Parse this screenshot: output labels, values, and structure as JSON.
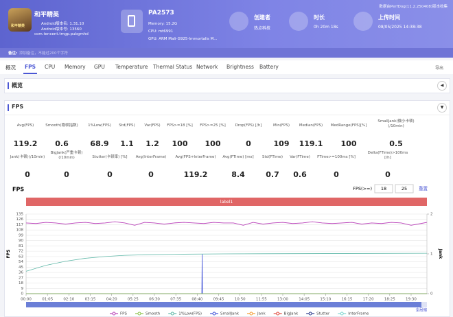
{
  "header": {
    "notice": "数据由PerfDog(11.2.250408)版本收集",
    "app": {
      "name": "和平精英",
      "version_name": "Android版本名: 1.31.10",
      "version_code": "Android版本号: 13560",
      "package": "com.tencent.tmgp.pubgmhd",
      "icon_text": "和平精英"
    },
    "device": {
      "name": "PA2573",
      "memory": "Memory: 15.2G",
      "cpu": "CPU: mt6991",
      "gpu": "GPU: ARM Mali-G925-Immortalis M..."
    },
    "info": [
      {
        "label": "创建者",
        "value": "热点科技"
      },
      {
        "label": "时长",
        "value": "0h 20m 18s"
      },
      {
        "label": "上传时间",
        "value": "08/05/2025 14:38:38"
      }
    ]
  },
  "remark": {
    "label": "备注:",
    "placeholder": "添加备注，不能过200个字符"
  },
  "tabs": [
    "概况",
    "FPS",
    "CPU",
    "Memory",
    "GPU",
    "Temperature",
    "Thermal Status",
    "Network",
    "Brightness",
    "Battery"
  ],
  "active_tab": 1,
  "export": "导出",
  "sections": {
    "overview": "概览",
    "fps": "FPS"
  },
  "stats": [
    [
      {
        "label": "Avg(FPS)",
        "value": 119.2
      },
      {
        "label": "Smooth(稳帧指数)",
        "value": 0.6
      },
      {
        "label": "1%Low(FPS)",
        "value": 68.9
      },
      {
        "label": "Std(FPS)",
        "value": 1.1
      },
      {
        "label": "Var(FPS)",
        "value": 1.2
      },
      {
        "label": "FPS>=18 [%]",
        "value": 100
      },
      {
        "label": "FPS>=25 [%]",
        "value": 100
      },
      {
        "label": "Drop(FPS) [/h]",
        "value": 0
      },
      {
        "label": "Min(FPS)",
        "value": 109
      },
      {
        "label": "Median(FPS)",
        "value": 119.1
      },
      {
        "label": "MedRange(FPS)[%]",
        "value": 100
      },
      {
        "label": "SmallJank(微小卡顿)(/10min)",
        "value": 0.5
      }
    ],
    [
      {
        "label": "Jank(卡顿)(/10min)",
        "value": 0
      },
      {
        "label": "BigJank(严重卡顿)(/10min)",
        "value": 0
      },
      {
        "label": "Stutter(卡顿率) [%]",
        "value": 0
      },
      {
        "label": "Avg(InterFrame)",
        "value": 0
      },
      {
        "label": "Avg(FPS+InterFrame)",
        "value": 119.2
      },
      {
        "label": "Avg(FTime) [ms]",
        "value": 8.4
      },
      {
        "label": "Std(FTime)",
        "value": 0.7
      },
      {
        "label": "Var(FTime)",
        "value": 0.6
      },
      {
        "label": "FTime>=100ms [%]",
        "value": 0
      },
      {
        "label": "Delta(FTime)>100ms [/h]",
        "value": 0
      }
    ]
  ],
  "chart_data": {
    "type": "line",
    "title": "FPS",
    "threshold_label": "FPS(>=)",
    "thresholds": [
      18,
      25
    ],
    "reset": "重置",
    "band_label": "label1",
    "ylabel": "FPS",
    "y2label": "Jank",
    "zoom_label": "全局缩",
    "grid": true,
    "xlim": [
      0,
      1218
    ],
    "ylim": [
      0,
      135
    ],
    "yticks": [
      0,
      9,
      18,
      27,
      36,
      45,
      54,
      63,
      72,
      81,
      90,
      99,
      108,
      117,
      126,
      135
    ],
    "y2lim": [
      0,
      2
    ],
    "y2ticks": [
      0,
      1,
      2
    ],
    "xticks": [
      {
        "value": 0,
        "label": "00:00"
      },
      {
        "value": 65,
        "label": "01:05"
      },
      {
        "value": 130,
        "label": "02:10"
      },
      {
        "value": 195,
        "label": "03:15"
      },
      {
        "value": 260,
        "label": "04:20"
      },
      {
        "value": 325,
        "label": "05:25"
      },
      {
        "value": 390,
        "label": "06:30"
      },
      {
        "value": 455,
        "label": "07:35"
      },
      {
        "value": 520,
        "label": "08:40"
      },
      {
        "value": 585,
        "label": "09:45"
      },
      {
        "value": 650,
        "label": "10:50"
      },
      {
        "value": 715,
        "label": "11:55"
      },
      {
        "value": 780,
        "label": "13:00"
      },
      {
        "value": 845,
        "label": "14:05"
      },
      {
        "value": 910,
        "label": "15:10"
      },
      {
        "value": 975,
        "label": "16:15"
      },
      {
        "value": 1040,
        "label": "17:20"
      },
      {
        "value": 1105,
        "label": "18:25"
      },
      {
        "value": 1170,
        "label": "19:30"
      }
    ],
    "series": [
      {
        "name": "FPS",
        "color": "#b83fb8",
        "x": [
          0,
          30,
          60,
          90,
          120,
          150,
          180,
          210,
          240,
          270,
          300,
          330,
          360,
          390,
          420,
          450,
          480,
          510,
          540,
          570,
          600,
          630,
          660,
          690,
          720,
          750,
          780,
          810,
          840,
          870,
          900,
          930,
          960,
          990,
          1020,
          1050,
          1080,
          1110,
          1140,
          1170,
          1200,
          1218
        ],
        "values": [
          120,
          119,
          121,
          120,
          118,
          120,
          121,
          119,
          120,
          122,
          120,
          116,
          121,
          120,
          118,
          120,
          121,
          120,
          119,
          121,
          120,
          120,
          116,
          121,
          118,
          120,
          121,
          119,
          120,
          122,
          120,
          119,
          120,
          121,
          118,
          120,
          119,
          121,
          120,
          116,
          119,
          121
        ]
      },
      {
        "name": "Smooth",
        "color": "#8bc34a",
        "axis": "y2",
        "x": [
          0,
          1218
        ],
        "values": [
          0,
          0
        ]
      },
      {
        "name": "1%Low(FPS)",
        "color": "#5fb8a8",
        "x": [
          0,
          60,
          120,
          180,
          240,
          300,
          360,
          480,
          600,
          900,
          1218
        ],
        "values": [
          38,
          48,
          55,
          60,
          63,
          65,
          66,
          67,
          67.5,
          68,
          68.5
        ]
      },
      {
        "name": "SmallJank",
        "color": "#3f51d8",
        "axis": "y2",
        "x": [
          0,
          534,
          535,
          536,
          1218
        ],
        "values": [
          0,
          0,
          1,
          0,
          0
        ]
      },
      {
        "name": "Jank",
        "color": "#f39c33",
        "axis": "y2",
        "x": [
          0,
          1218
        ],
        "values": [
          0,
          0
        ]
      },
      {
        "name": "BigJank",
        "color": "#e0483c",
        "axis": "y2",
        "x": [
          0,
          1218
        ],
        "values": [
          0,
          0
        ]
      },
      {
        "name": "Stutter",
        "color": "#2a3a8c",
        "axis": "y2",
        "x": [
          0,
          1218
        ],
        "values": [
          0,
          0
        ]
      },
      {
        "name": "InterFrame",
        "color": "#7fd6d0",
        "x": [
          0,
          1218
        ],
        "values": [
          0,
          0
        ]
      }
    ]
  }
}
